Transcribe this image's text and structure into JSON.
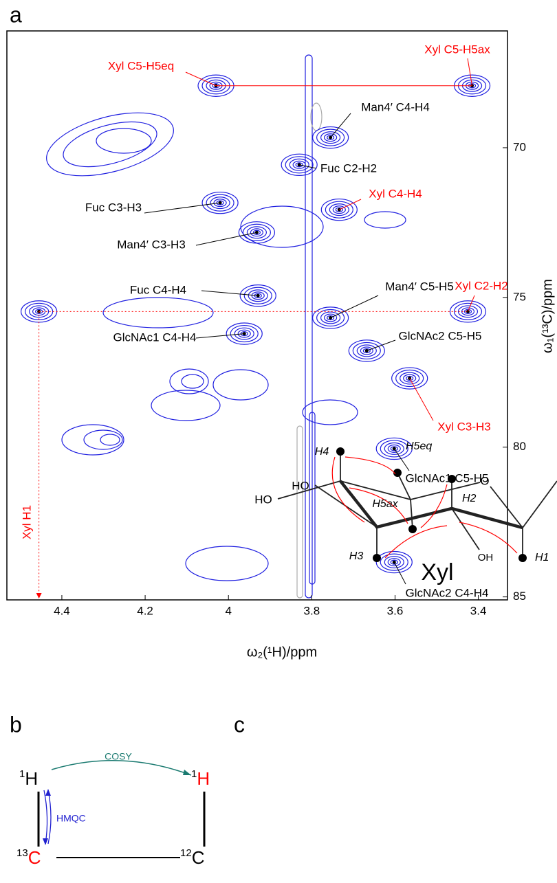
{
  "panel_labels": [
    "a",
    "b",
    "c"
  ],
  "chart_data": {
    "type": "contour",
    "xlabel": "ω₂(¹H)/ppm",
    "ylabel": "ω₁(¹³C)/ppm",
    "xlim": [
      4.532,
      3.33
    ],
    "ylim": [
      66.1,
      85.1
    ],
    "xticks": [
      4.4,
      4.2,
      4.0,
      3.8,
      3.6,
      3.4
    ],
    "yticks": [
      70,
      75,
      80,
      85
    ],
    "color": "#1f1fe0",
    "peaks": [
      {
        "label": "Xyl C5-H5eq",
        "x": 4.03,
        "y": 67.93,
        "color": "red"
      },
      {
        "label": "Xyl C5-H5ax",
        "x": 3.415,
        "y": 67.93,
        "color": "red"
      },
      {
        "label": "Man4′ C4-H4",
        "x": 3.755,
        "y": 69.66,
        "color": "black"
      },
      {
        "label": "Fuc C2-H2",
        "x": 3.83,
        "y": 70.57,
        "color": "black"
      },
      {
        "label": "Xyl C4-H4",
        "x": 3.734,
        "y": 72.07,
        "color": "red"
      },
      {
        "label": "Fuc C3-H3",
        "x": 4.02,
        "y": 71.84,
        "color": "black"
      },
      {
        "label": "Man4′ C3-H3",
        "x": 3.932,
        "y": 72.83,
        "color": "black"
      },
      {
        "label": "Fuc C4-H4",
        "x": 3.929,
        "y": 74.94,
        "color": "black"
      },
      {
        "label": "Man4′ C5-H5",
        "x": 3.755,
        "y": 75.68,
        "color": "black"
      },
      {
        "label": "Xyl C2-H2",
        "x": 3.425,
        "y": 75.47,
        "color": "red"
      },
      {
        "label": "GlcNAc1 C4-H4",
        "x": 3.962,
        "y": 76.21,
        "color": "black"
      },
      {
        "label": "GlcNAc2 C5-H5",
        "x": 3.668,
        "y": 76.78,
        "color": "black"
      },
      {
        "label": "Xyl C3-H3",
        "x": 3.565,
        "y": 77.7,
        "color": "red"
      },
      {
        "label": "GlcNAc1 C5-H5",
        "x": 3.602,
        "y": 80.05,
        "color": "black"
      },
      {
        "label": "GlcNAc2 C4-H4",
        "x": 3.602,
        "y": 83.84,
        "color": "black"
      },
      {
        "label": "Xyl H1",
        "x": 4.455,
        "y": 75.47,
        "color": "red"
      }
    ]
  },
  "diagram_b": {
    "h_left": {
      "mass": "1",
      "element": "H"
    },
    "h_right": {
      "mass": "1",
      "element": "H"
    },
    "c_left": {
      "mass": "13",
      "element": "C"
    },
    "c_right": {
      "mass": "12",
      "element": "C"
    },
    "cosy": "COSY",
    "hmqc": "HMQC"
  },
  "diagram_c": {
    "atoms": [
      "H4",
      "H5eq",
      "O",
      "H2",
      "HO",
      "HO",
      "H5ax",
      "H3",
      "H1",
      "OH"
    ],
    "name": "Xyl"
  }
}
